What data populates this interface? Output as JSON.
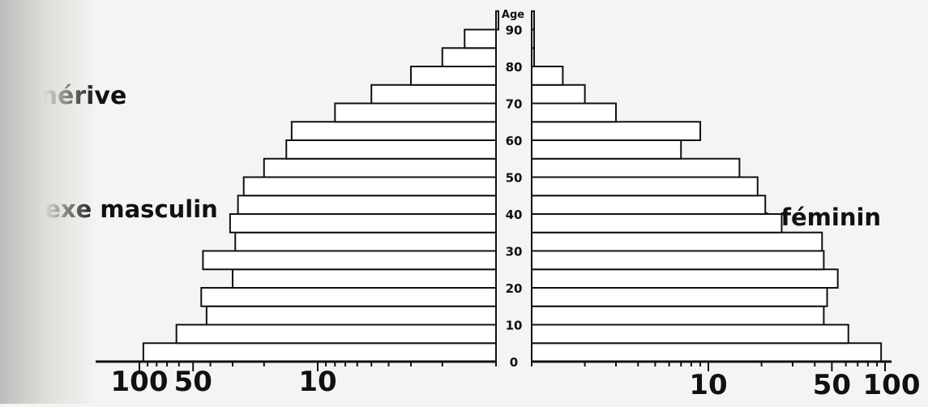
{
  "place": "Fénérive",
  "left_label": "sexe masculin",
  "right_label": "sexe féminin",
  "age_axis_title": "Age",
  "age_labels": [
    "0",
    "10",
    "20",
    "30",
    "40",
    "50",
    "60",
    "70",
    "80",
    "90"
  ],
  "x_tick_labels_left": [
    "100",
    "50",
    "10"
  ],
  "x_tick_labels_right": [
    "10",
    "50",
    "100"
  ],
  "chart_data": {
    "type": "bar",
    "orientation": "horizontal-population-pyramid",
    "title": "Fénérive",
    "ylabel": "Age",
    "age_groups": [
      "0-4",
      "5-9",
      "10-14",
      "15-19",
      "20-24",
      "25-29",
      "30-34",
      "35-39",
      "40-44",
      "45-49",
      "50-54",
      "55-59",
      "60-64",
      "65-69",
      "70-74",
      "75-79",
      "80-84",
      "85-89",
      "90-94"
    ],
    "x_scale": "log",
    "xlim": [
      1,
      100
    ],
    "series": [
      {
        "name": "sexe masculin",
        "values": [
          95,
          62,
          42,
          45,
          30,
          44,
          29,
          31,
          28,
          26,
          20,
          15,
          14,
          8,
          5,
          3,
          2,
          1.5,
          1
        ]
      },
      {
        "name": "sexe féminin",
        "values": [
          95,
          62,
          45,
          47,
          54,
          45,
          44,
          26,
          21,
          19,
          15,
          7,
          9,
          3,
          2,
          1.5,
          1,
          1,
          1
        ]
      }
    ],
    "grid": false
  }
}
